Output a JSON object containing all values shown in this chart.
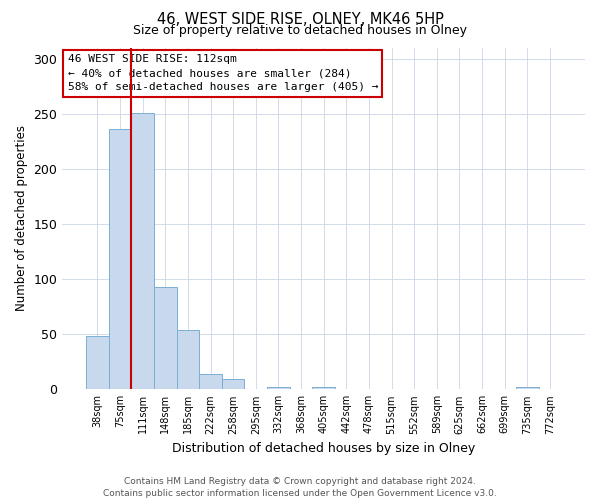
{
  "title": "46, WEST SIDE RISE, OLNEY, MK46 5HP",
  "subtitle": "Size of property relative to detached houses in Olney",
  "xlabel": "Distribution of detached houses by size in Olney",
  "ylabel": "Number of detached properties",
  "bin_labels": [
    "38sqm",
    "75sqm",
    "111sqm",
    "148sqm",
    "185sqm",
    "222sqm",
    "258sqm",
    "295sqm",
    "332sqm",
    "368sqm",
    "405sqm",
    "442sqm",
    "478sqm",
    "515sqm",
    "552sqm",
    "589sqm",
    "625sqm",
    "662sqm",
    "699sqm",
    "735sqm",
    "772sqm"
  ],
  "bar_heights": [
    48,
    236,
    251,
    93,
    54,
    14,
    9,
    0,
    2,
    0,
    2,
    0,
    0,
    0,
    0,
    0,
    0,
    0,
    0,
    2,
    0
  ],
  "bar_color": "#c8d9ee",
  "bar_edge_color": "#7aafd4",
  "vline_color": "#cc0000",
  "vline_x_data": 1.5,
  "ylim": [
    0,
    310
  ],
  "yticks": [
    0,
    50,
    100,
    150,
    200,
    250,
    300
  ],
  "annotation_text": "46 WEST SIDE RISE: 112sqm\n← 40% of detached houses are smaller (284)\n58% of semi-detached houses are larger (405) →",
  "annotation_box_color": "#ffffff",
  "annotation_edge_color": "#cc0000",
  "footer_line1": "Contains HM Land Registry data © Crown copyright and database right 2024.",
  "footer_line2": "Contains public sector information licensed under the Open Government Licence v3.0.",
  "background_color": "#ffffff",
  "grid_color": "#ccd6e8"
}
